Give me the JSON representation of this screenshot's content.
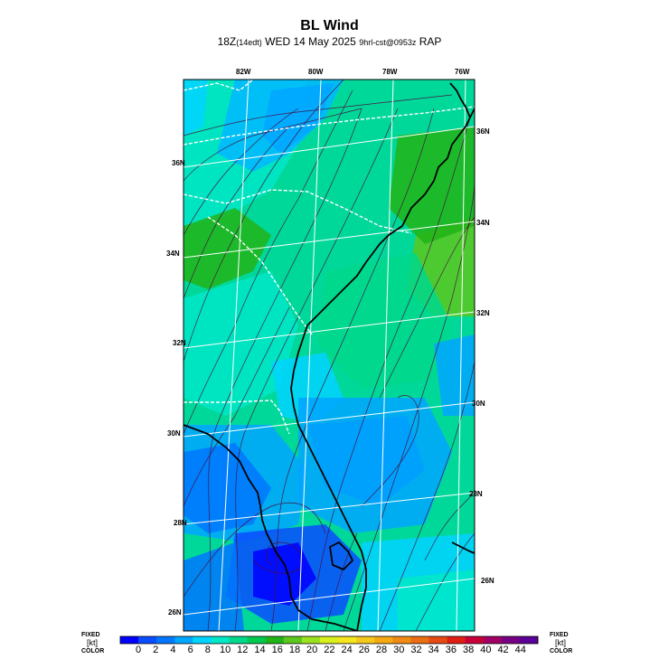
{
  "title": "BL Wind",
  "subtitle": {
    "time": "18Z",
    "local": "(14edt)",
    "date": "WED 14 May 2025",
    "run": "9hrl-cst@0953z",
    "model": "RAP"
  },
  "lon_labels": [
    "82W",
    "80W",
    "78W",
    "76W"
  ],
  "lat_labels_left": [
    "36N",
    "34N",
    "32N",
    "30N",
    "28N",
    "26N"
  ],
  "lat_labels_right": [
    "36N",
    "34N",
    "32N",
    "30N",
    "28N",
    "26N"
  ],
  "legend_left": {
    "line1": "FIXED",
    "line2": "[kt]",
    "line3": "COLOR"
  },
  "legend_right": {
    "line1": "FIXED",
    "line2": "[kt]",
    "line3": "COLOR"
  },
  "colorbar": {
    "unit": "kt",
    "labels": [
      "0",
      "2",
      "4",
      "6",
      "8",
      "10",
      "12",
      "14",
      "16",
      "18",
      "20",
      "22",
      "24",
      "26",
      "28",
      "30",
      "32",
      "34",
      "36",
      "38",
      "40",
      "42",
      "44"
    ],
    "colors": [
      "#0000ff",
      "#0a4cff",
      "#0077ff",
      "#00a6ff",
      "#00d4ff",
      "#00e8c8",
      "#00d88c",
      "#00c850",
      "#21b417",
      "#5cc81e",
      "#9be21e",
      "#d7f01e",
      "#f5e61e",
      "#f5c81e",
      "#f5aa14",
      "#f08c14",
      "#eb6e14",
      "#e64b14",
      "#e11e14",
      "#c80037",
      "#a00064",
      "#780082",
      "#5a0096"
    ]
  },
  "map": {
    "region": "Southeast US",
    "field": "boundary layer wind speed (kt) with streamlines"
  }
}
